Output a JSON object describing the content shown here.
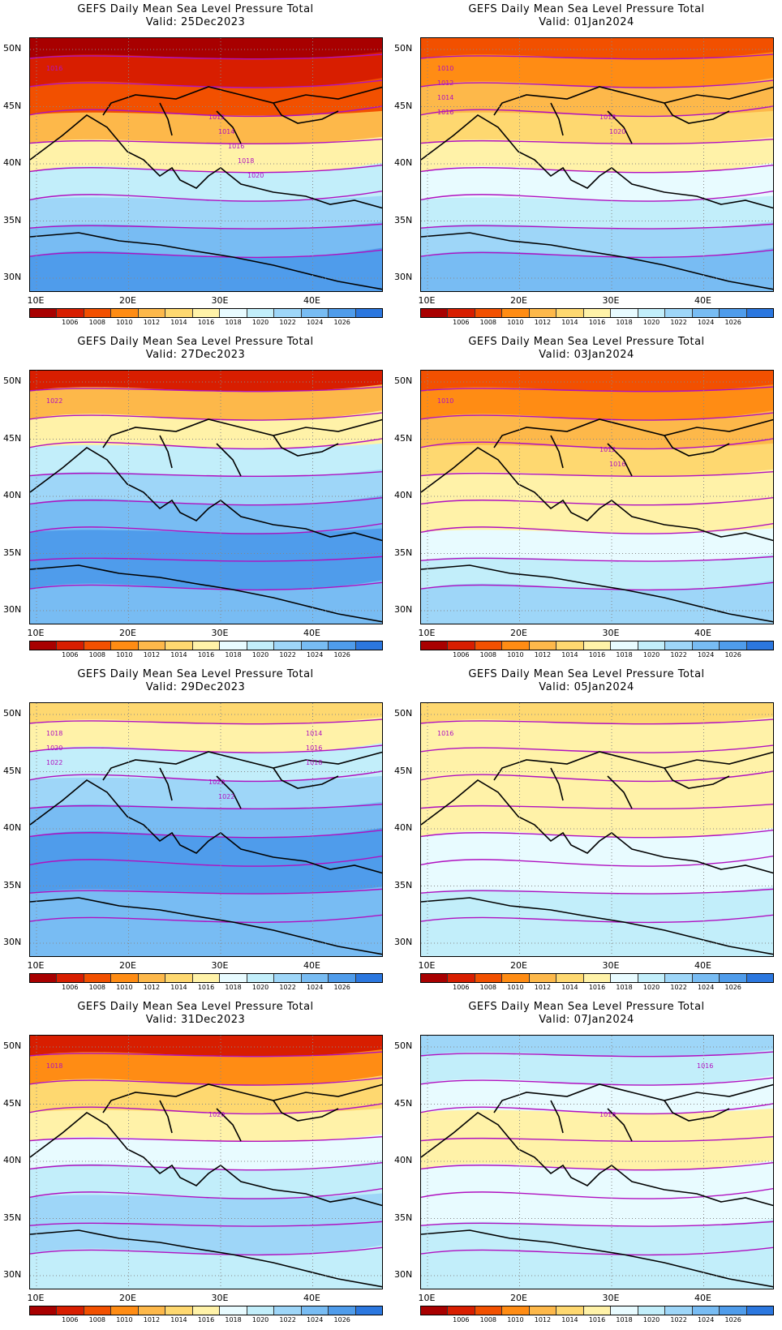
{
  "title": "GEFS Daily Mean Sea Level Pressure Total",
  "lat_labels": [
    "50N",
    "45N",
    "40N",
    "35N",
    "30N"
  ],
  "lon_labels": [
    "10E",
    "20E",
    "30E",
    "40E"
  ],
  "colorbar": {
    "colors": [
      "#a80000",
      "#d81e00",
      "#f25000",
      "#ff8c14",
      "#fdb84a",
      "#fed870",
      "#fff2a8",
      "#e8fbff",
      "#c2eefa",
      "#9ed6f8",
      "#78bcf3",
      "#4f9ceb",
      "#2b77df"
    ],
    "labels": [
      "1006",
      "1008",
      "1010",
      "1012",
      "1014",
      "1016",
      "1018",
      "1020",
      "1022",
      "1024",
      "1026"
    ]
  },
  "panels": [
    {
      "valid": "Valid: 25Dec2023",
      "colors": [
        "#a80000",
        "#d81e00",
        "#f25000",
        "#fdb84a",
        "#fff2a8",
        "#c2eefa",
        "#9ed6f8",
        "#78bcf3",
        "#4f9ceb"
      ],
      "contours": [
        {
          "text": "1016",
          "pos": "l"
        },
        {
          "text": "1012",
          "pos": "m"
        },
        {
          "text": "1014",
          "pos": "m"
        },
        {
          "text": "1016",
          "pos": "m"
        },
        {
          "text": "1018",
          "pos": "m"
        },
        {
          "text": "1020",
          "pos": "m"
        }
      ]
    },
    {
      "valid": "Valid: 01Jan2024",
      "colors": [
        "#f25000",
        "#ff8c14",
        "#fdb84a",
        "#fed870",
        "#fff2a8",
        "#e8fbff",
        "#c2eefa",
        "#9ed6f8",
        "#78bcf3"
      ],
      "contours": [
        {
          "text": "1010",
          "pos": "l"
        },
        {
          "text": "1012",
          "pos": "l"
        },
        {
          "text": "1014",
          "pos": "l"
        },
        {
          "text": "1016",
          "pos": "l"
        },
        {
          "text": "1018",
          "pos": "m"
        },
        {
          "text": "1020",
          "pos": "m"
        }
      ]
    },
    {
      "valid": "Valid: 27Dec2023",
      "colors": [
        "#d81e00",
        "#fdb84a",
        "#fff2a8",
        "#c2eefa",
        "#9ed6f8",
        "#78bcf3",
        "#4f9ceb",
        "#4f9ceb",
        "#78bcf3"
      ],
      "contours": [
        {
          "text": "1022",
          "pos": "l"
        }
      ]
    },
    {
      "valid": "Valid: 03Jan2024",
      "colors": [
        "#f25000",
        "#ff8c14",
        "#fdb84a",
        "#fed870",
        "#fff2a8",
        "#fff2a8",
        "#e8fbff",
        "#c2eefa",
        "#9ed6f8"
      ],
      "contours": [
        {
          "text": "1010",
          "pos": "l"
        },
        {
          "text": "1012",
          "pos": "m"
        },
        {
          "text": "1016",
          "pos": "m"
        }
      ]
    },
    {
      "valid": "Valid: 29Dec2023",
      "colors": [
        "#fed870",
        "#fff2a8",
        "#c2eefa",
        "#9ed6f8",
        "#78bcf3",
        "#4f9ceb",
        "#4f9ceb",
        "#78bcf3",
        "#78bcf3"
      ],
      "contours": [
        {
          "text": "1018",
          "pos": "l"
        },
        {
          "text": "1020",
          "pos": "l"
        },
        {
          "text": "1022",
          "pos": "l"
        },
        {
          "text": "1014",
          "pos": "r"
        },
        {
          "text": "1016",
          "pos": "r"
        },
        {
          "text": "1018",
          "pos": "r"
        },
        {
          "text": "1020",
          "pos": "m"
        },
        {
          "text": "1022",
          "pos": "m"
        }
      ]
    },
    {
      "valid": "Valid: 05Jan2024",
      "colors": [
        "#fed870",
        "#fff2a8",
        "#fff2a8",
        "#fff2a8",
        "#fff2a8",
        "#e8fbff",
        "#e8fbff",
        "#c2eefa",
        "#c2eefa"
      ],
      "contours": [
        {
          "text": "1016",
          "pos": "l"
        }
      ]
    },
    {
      "valid": "Valid: 31Dec2023",
      "colors": [
        "#d81e00",
        "#ff8c14",
        "#fed870",
        "#fff2a8",
        "#e8fbff",
        "#c2eefa",
        "#9ed6f8",
        "#9ed6f8",
        "#c2eefa"
      ],
      "contours": [
        {
          "text": "1018",
          "pos": "l"
        },
        {
          "text": "1020",
          "pos": "m"
        }
      ]
    },
    {
      "valid": "Valid: 07Jan2024",
      "colors": [
        "#9ed6f8",
        "#c2eefa",
        "#e8fbff",
        "#fff2a8",
        "#fff2a8",
        "#e8fbff",
        "#e8fbff",
        "#c2eefa",
        "#c2eefa"
      ],
      "contours": [
        {
          "text": "1016",
          "pos": "r"
        },
        {
          "text": "1016",
          "pos": "m"
        }
      ]
    }
  ]
}
